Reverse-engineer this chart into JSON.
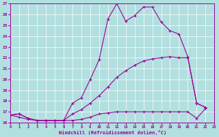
{
  "xlabel": "Windchill (Refroidissement éolien,°C)",
  "bg_color": "#b2dfdf",
  "line_color": "#990099",
  "xlim": [
    0,
    23
  ],
  "ylim": [
    16,
    27
  ],
  "yticks": [
    16,
    17,
    18,
    19,
    20,
    21,
    22,
    23,
    24,
    25,
    26,
    27
  ],
  "xticks": [
    0,
    1,
    2,
    3,
    4,
    5,
    6,
    7,
    8,
    9,
    10,
    11,
    12,
    13,
    14,
    15,
    16,
    17,
    18,
    19,
    20,
    21,
    22,
    23
  ],
  "series": [
    {
      "x": [
        0,
        1,
        2,
        3,
        4,
        5,
        6,
        7,
        8,
        9,
        10,
        11,
        12,
        13,
        14,
        15,
        16,
        17,
        18,
        19,
        20,
        21,
        22
      ],
      "y": [
        16.7,
        16.8,
        16.4,
        16.2,
        16.2,
        16.2,
        16.2,
        17.8,
        18.3,
        20.0,
        21.8,
        25.6,
        27.0,
        25.4,
        25.9,
        26.7,
        26.7,
        25.3,
        24.5,
        24.2,
        22.1,
        17.8,
        17.4
      ]
    },
    {
      "x": [
        0,
        1,
        2,
        3,
        4,
        5,
        6,
        7,
        8,
        9,
        10,
        11,
        12,
        13,
        14,
        15,
        16,
        17,
        18,
        19,
        20,
        21,
        22
      ],
      "y": [
        16.7,
        16.5,
        16.3,
        16.2,
        16.2,
        16.2,
        16.2,
        16.8,
        17.2,
        17.8,
        18.5,
        19.3,
        20.2,
        20.8,
        21.3,
        21.7,
        21.9,
        22.0,
        22.1,
        22.0,
        22.0,
        17.8,
        17.4
      ]
    },
    {
      "x": [
        0,
        1,
        2,
        3,
        4,
        5,
        6,
        7,
        8,
        9,
        10,
        11,
        12,
        13,
        14,
        15,
        16,
        17,
        18,
        19,
        20,
        21,
        22
      ],
      "y": [
        16.7,
        16.8,
        16.4,
        16.2,
        16.2,
        16.2,
        16.2,
        16.2,
        16.3,
        16.5,
        16.8,
        16.9,
        17.0,
        17.0,
        17.0,
        17.0,
        17.0,
        17.0,
        17.0,
        17.0,
        17.0,
        16.4,
        17.3
      ]
    }
  ]
}
